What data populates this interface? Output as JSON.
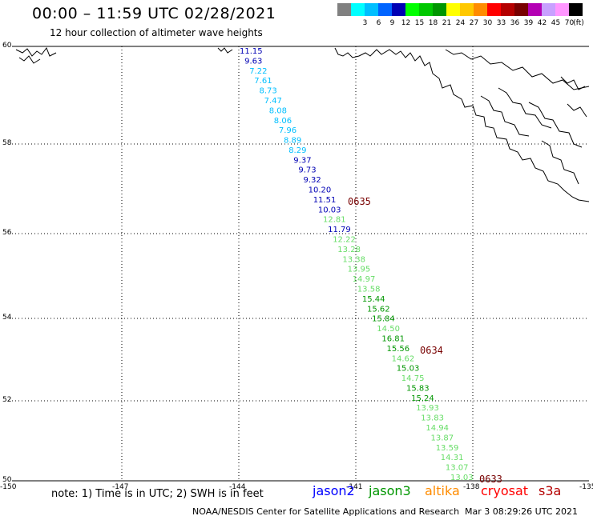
{
  "header": {
    "title": "00:00 – 11:59 UTC 02/28/2021",
    "subtitle": "12 hour collection of altimeter wave heights"
  },
  "scale": {
    "unit": "(ft)",
    "entries": [
      {
        "label": "",
        "color": "#808080"
      },
      {
        "label": "3",
        "color": "#00ffff"
      },
      {
        "label": "6",
        "color": "#00bfff"
      },
      {
        "label": "9",
        "color": "#0064ff"
      },
      {
        "label": "12",
        "color": "#0000b4"
      },
      {
        "label": "15",
        "color": "#00ff00"
      },
      {
        "label": "18",
        "color": "#00c800"
      },
      {
        "label": "21",
        "color": "#009600"
      },
      {
        "label": "24",
        "color": "#ffff00"
      },
      {
        "label": "27",
        "color": "#ffc800"
      },
      {
        "label": "30",
        "color": "#ff8c00"
      },
      {
        "label": "33",
        "color": "#ff0000"
      },
      {
        "label": "36",
        "color": "#b40000"
      },
      {
        "label": "39",
        "color": "#780000"
      },
      {
        "label": "42",
        "color": "#b400b4"
      },
      {
        "label": "45",
        "color": "#c8a0ff"
      },
      {
        "label": "70",
        "color": "#ff96ff"
      },
      {
        "label": "",
        "color": "#000000"
      }
    ]
  },
  "axes": {
    "lat_labels": [
      "60",
      "58",
      "56",
      "54",
      "52",
      "50"
    ],
    "lon_labels": [
      "-150",
      "-147",
      "-144",
      "-141",
      "-138",
      "-135"
    ]
  },
  "track_times": [
    "0635",
    "0634",
    "0633"
  ],
  "observations": [
    {
      "value": "11.15",
      "color": "#0000b4"
    },
    {
      "value": "9.63",
      "color": "#0000b4"
    },
    {
      "value": "7.22",
      "color": "#00bfff"
    },
    {
      "value": "7.61",
      "color": "#00bfff"
    },
    {
      "value": "8.73",
      "color": "#00bfff"
    },
    {
      "value": "7.47",
      "color": "#00bfff"
    },
    {
      "value": "8.08",
      "color": "#00bfff"
    },
    {
      "value": "8.06",
      "color": "#00bfff"
    },
    {
      "value": "7.96",
      "color": "#00bfff"
    },
    {
      "value": "8.89",
      "color": "#00bfff"
    },
    {
      "value": "8.29",
      "color": "#00bfff"
    },
    {
      "value": "9.37",
      "color": "#0000b4"
    },
    {
      "value": "9.73",
      "color": "#0000b4"
    },
    {
      "value": "9.32",
      "color": "#0000b4"
    },
    {
      "value": "10.20",
      "color": "#0000b4"
    },
    {
      "value": "11.51",
      "color": "#0000b4"
    },
    {
      "value": "10.03",
      "color": "#0000b4"
    },
    {
      "value": "12.81",
      "color": "#66dd66"
    },
    {
      "value": "11.79",
      "color": "#0000b4"
    },
    {
      "value": "12.22",
      "color": "#66dd66"
    },
    {
      "value": "13.28",
      "color": "#66dd66"
    },
    {
      "value": "13.38",
      "color": "#66dd66"
    },
    {
      "value": "13.95",
      "color": "#66dd66"
    },
    {
      "value": "14.97",
      "color": "#66dd66"
    },
    {
      "value": "13.58",
      "color": "#66dd66"
    },
    {
      "value": "15.44",
      "color": "#009600"
    },
    {
      "value": "15.62",
      "color": "#009600"
    },
    {
      "value": "15.84",
      "color": "#009600"
    },
    {
      "value": "14.50",
      "color": "#66dd66"
    },
    {
      "value": "16.81",
      "color": "#009600"
    },
    {
      "value": "15.56",
      "color": "#009600"
    },
    {
      "value": "14.62",
      "color": "#66dd66"
    },
    {
      "value": "15.03",
      "color": "#009600"
    },
    {
      "value": "14.75",
      "color": "#66dd66"
    },
    {
      "value": "15.83",
      "color": "#009600"
    },
    {
      "value": "15.24",
      "color": "#009600"
    },
    {
      "value": "13.93",
      "color": "#66dd66"
    },
    {
      "value": "13.83",
      "color": "#66dd66"
    },
    {
      "value": "14.94",
      "color": "#66dd66"
    },
    {
      "value": "13.87",
      "color": "#66dd66"
    },
    {
      "value": "13.59",
      "color": "#66dd66"
    },
    {
      "value": "14.31",
      "color": "#66dd66"
    },
    {
      "value": "13.07",
      "color": "#66dd66"
    },
    {
      "value": "13.03",
      "color": "#66dd66"
    }
  ],
  "footer": {
    "note": "note: 1) Time is in UTC; 2) SWH is in feet",
    "satellites": [
      {
        "name": "jason2",
        "color": "#0000ff"
      },
      {
        "name": "jason3",
        "color": "#009600"
      },
      {
        "name": "altika",
        "color": "#ff8c00"
      },
      {
        "name": "cryosat",
        "color": "#ff0000"
      },
      {
        "name": "s3a",
        "color": "#b40000"
      }
    ],
    "credit": "NOAA/NESDIS Center for Satellite Applications and Research",
    "timestamp": "Mar  3 08:29:26 UTC 2021"
  }
}
